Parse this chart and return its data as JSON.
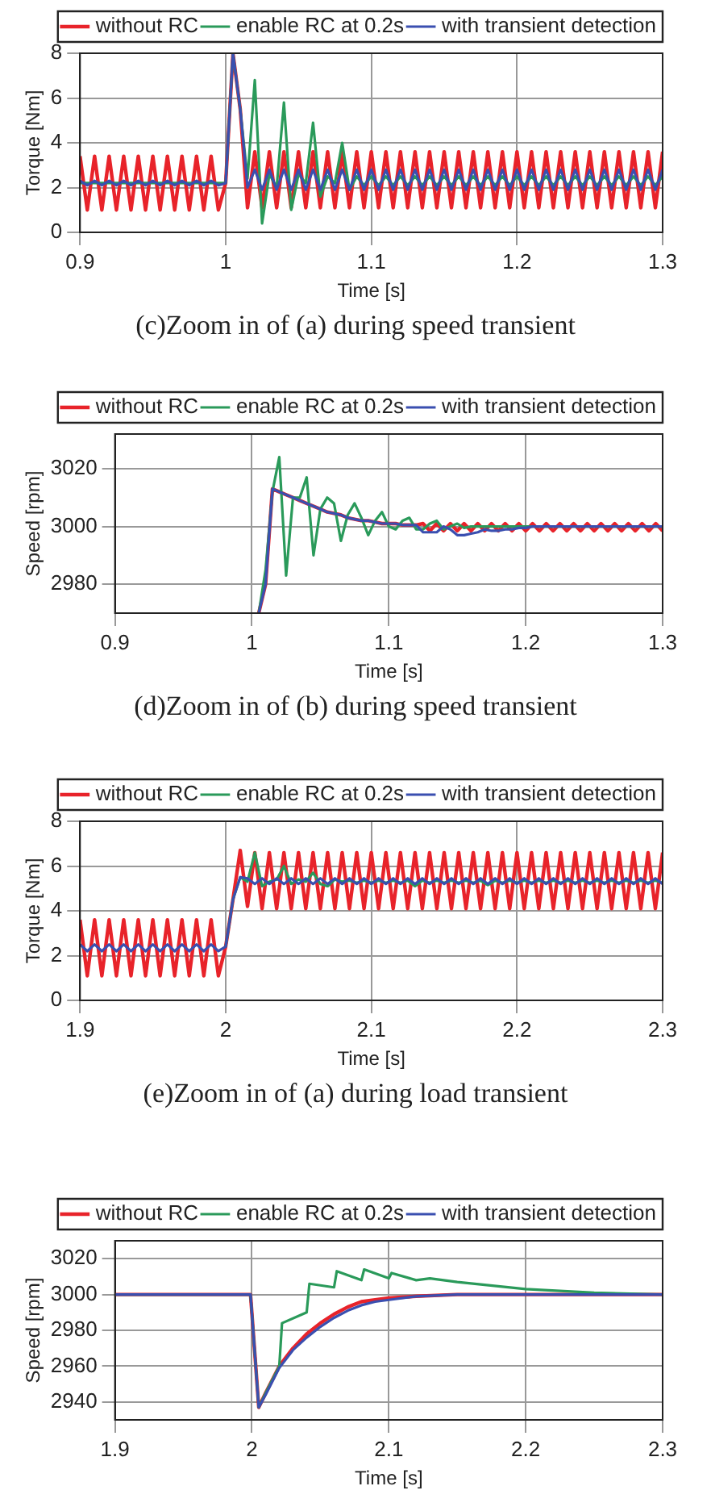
{
  "chart_data": [
    {
      "type": "line",
      "title": "(c)Zoom in of (a) during speed transient",
      "xlabel": "Time [s]",
      "ylabel": "Torque [Nm]",
      "legend": "top",
      "grid": true,
      "marker": "none",
      "line_style": "solid",
      "xlim": [
        0.9,
        1.3
      ],
      "xticks": [
        0.9,
        1,
        1.1,
        1.2,
        1.3
      ],
      "ylim": [
        0,
        8
      ],
      "yticks": [
        0,
        2,
        4,
        6,
        8
      ],
      "x": [
        0.9,
        0.905,
        0.91,
        0.915,
        0.92,
        0.925,
        0.93,
        0.935,
        0.94,
        0.945,
        0.95,
        0.955,
        0.96,
        0.965,
        0.97,
        0.975,
        0.98,
        0.985,
        0.99,
        0.995,
        1.0,
        1.005,
        1.01,
        1.015,
        1.02,
        1.025,
        1.03,
        1.035,
        1.04,
        1.045,
        1.05,
        1.055,
        1.06,
        1.065,
        1.07,
        1.075,
        1.08,
        1.085,
        1.09,
        1.095,
        1.1,
        1.105,
        1.11,
        1.115,
        1.12,
        1.125,
        1.13,
        1.135,
        1.14,
        1.145,
        1.15,
        1.155,
        1.16,
        1.165,
        1.17,
        1.175,
        1.18,
        1.185,
        1.19,
        1.195,
        1.2,
        1.205,
        1.21,
        1.215,
        1.22,
        1.225,
        1.23,
        1.235,
        1.24,
        1.245,
        1.25,
        1.255,
        1.26,
        1.265,
        1.27,
        1.275,
        1.28,
        1.285,
        1.29,
        1.295,
        1.3
      ],
      "series": [
        {
          "name": "without RC",
          "color": "#e8232a",
          "values": [
            3.4,
            1.0,
            3.4,
            1.0,
            3.4,
            1.0,
            3.4,
            1.0,
            3.4,
            1.0,
            3.4,
            1.0,
            3.4,
            1.0,
            3.4,
            1.0,
            3.4,
            1.0,
            3.4,
            1.0,
            2.2,
            8,
            5.5,
            1.1,
            3.6,
            1.1,
            3.6,
            1.1,
            3.6,
            1.1,
            3.6,
            1.1,
            3.6,
            1.1,
            3.6,
            1.1,
            3.6,
            1.1,
            3.6,
            1.1,
            3.6,
            1.1,
            3.6,
            1.1,
            3.6,
            1.1,
            3.6,
            1.1,
            3.6,
            1.1,
            3.6,
            1.1,
            3.6,
            1.1,
            3.6,
            1.1,
            3.6,
            1.1,
            3.6,
            1.1,
            3.6,
            1.1,
            3.6,
            1.1,
            3.6,
            1.1,
            3.6,
            1.1,
            3.6,
            1.1,
            3.6,
            1.1,
            3.6,
            1.1,
            3.6,
            1.1,
            3.6,
            1.1,
            3.6,
            1.1,
            3.6
          ]
        },
        {
          "name": "enable RC at 0.2s",
          "color": "#2a9a5a",
          "values": [
            2.2,
            2.2,
            2.2,
            2.2,
            2.2,
            2.2,
            2.2,
            2.2,
            2.2,
            2.2,
            2.2,
            2.2,
            2.2,
            2.2,
            2.2,
            2.2,
            2.2,
            2.2,
            2.2,
            2.2,
            2.2,
            8,
            5.5,
            2.4,
            6.8,
            0.4,
            2.6,
            2.0,
            5.8,
            1.0,
            2.6,
            2.2,
            4.9,
            1.6,
            2.5,
            2.2,
            4.0,
            1.9,
            2.5,
            2.1,
            2.5,
            2.1,
            2.5,
            2.1,
            2.5,
            2.1,
            2.5,
            2.1,
            2.5,
            2.1,
            2.5,
            2.1,
            2.5,
            2.1,
            2.5,
            2.1,
            2.5,
            2.1,
            2.5,
            2.1,
            2.5,
            2.1,
            2.5,
            2.1,
            2.5,
            2.1,
            2.5,
            2.1,
            2.5,
            2.1,
            2.5,
            2.1,
            2.5,
            2.1,
            2.5,
            2.1,
            2.5,
            2.1,
            2.5,
            2.1,
            2.5
          ]
        },
        {
          "name": "with transient detection",
          "color": "#3a4fb0",
          "values": [
            2.3,
            2.1,
            2.3,
            2.1,
            2.3,
            2.1,
            2.3,
            2.1,
            2.3,
            2.1,
            2.3,
            2.1,
            2.3,
            2.1,
            2.3,
            2.1,
            2.3,
            2.1,
            2.3,
            2.1,
            2.2,
            8,
            5.5,
            2.0,
            2.8,
            1.9,
            2.8,
            1.9,
            2.8,
            1.9,
            2.8,
            1.9,
            2.8,
            1.9,
            2.8,
            1.9,
            2.8,
            1.9,
            2.8,
            1.9,
            2.8,
            1.9,
            2.8,
            1.9,
            2.8,
            1.9,
            2.8,
            1.9,
            2.8,
            1.9,
            2.8,
            1.9,
            2.8,
            1.9,
            2.8,
            1.9,
            2.8,
            1.9,
            2.8,
            1.9,
            2.8,
            1.9,
            2.8,
            1.9,
            2.8,
            1.9,
            2.8,
            1.9,
            2.8,
            1.9,
            2.8,
            1.9,
            2.8,
            1.9,
            2.8,
            1.9,
            2.8,
            1.9,
            2.8,
            1.9,
            2.8
          ]
        }
      ]
    },
    {
      "type": "line",
      "title": "(d)Zoom in of (b) during speed transient",
      "xlabel": "Time [s]",
      "ylabel": "Speed [rpm]",
      "legend": "top",
      "grid": true,
      "marker": "none",
      "line_style": "solid",
      "xlim": [
        0.9,
        1.3
      ],
      "xticks": [
        0.9,
        1,
        1.1,
        1.2,
        1.3
      ],
      "ylim": [
        2970,
        3032
      ],
      "yticks": [
        2980,
        3000,
        3020
      ],
      "x": [
        1.005,
        1.01,
        1.015,
        1.02,
        1.025,
        1.03,
        1.035,
        1.04,
        1.045,
        1.05,
        1.055,
        1.06,
        1.065,
        1.07,
        1.075,
        1.08,
        1.085,
        1.09,
        1.095,
        1.1,
        1.105,
        1.11,
        1.115,
        1.12,
        1.125,
        1.13,
        1.135,
        1.14,
        1.145,
        1.15,
        1.155,
        1.16,
        1.165,
        1.17,
        1.175,
        1.18,
        1.185,
        1.19,
        1.195,
        1.2,
        1.205,
        1.21,
        1.215,
        1.22,
        1.225,
        1.23,
        1.235,
        1.24,
        1.245,
        1.25,
        1.255,
        1.26,
        1.265,
        1.27,
        1.275,
        1.28,
        1.285,
        1.29,
        1.295,
        1.3
      ],
      "series": [
        {
          "name": "without RC",
          "color": "#e8232a",
          "values": [
            2970,
            2980,
            3013,
            3012,
            3011,
            3010,
            3009,
            3008,
            3007,
            3006,
            3005,
            3004.5,
            3004,
            3003,
            3002.5,
            3002,
            3002,
            3001.5,
            3001,
            3001,
            3001,
            3000.5,
            3000.5,
            3000.5,
            3001,
            2998.5,
            3001,
            2998.5,
            3001,
            2998.5,
            3001,
            2998.5,
            3001,
            2998.5,
            3001,
            2998.5,
            3001,
            2998.5,
            3001,
            2998.5,
            3001,
            2998.5,
            3001,
            2998.5,
            3001,
            2998.5,
            3001,
            2998.5,
            3001,
            2998.5,
            3001,
            2998.5,
            3001,
            2998.5,
            3001,
            2998.5,
            3001,
            2998.5,
            3001,
            2998.5
          ]
        },
        {
          "name": "enable RC at 0.2s",
          "color": "#2a9a5a",
          "values": [
            2970,
            2985,
            3012,
            3024,
            2983,
            3010,
            3010,
            3017,
            2990,
            3006,
            3010,
            3008,
            2995,
            3004,
            3008,
            3003,
            2997,
            3002,
            3005,
            3000,
            2999,
            3002,
            3003,
            2999,
            2999,
            3001,
            3002,
            2999,
            3000,
            3001,
            2999.5,
            3000,
            3000,
            3000,
            3000,
            3000,
            3000,
            3000,
            3000,
            3000,
            3000,
            3000,
            3000,
            3000,
            3000,
            3000,
            3000,
            3000,
            3000,
            3000,
            3000,
            3000,
            3000,
            3000,
            3000,
            3000,
            3000,
            3000,
            3000,
            3000
          ]
        },
        {
          "name": "with transient detection",
          "color": "#3a4fb0",
          "values": [
            2970,
            2980,
            3013,
            3012,
            3011,
            3010,
            3009,
            3008,
            3007,
            3006,
            3005,
            3004.5,
            3004,
            3003,
            3002.5,
            3002,
            3002,
            3001.5,
            3001,
            3001,
            3001,
            3000.5,
            3000.5,
            3000.5,
            2998,
            2998,
            2998,
            3000,
            2999,
            2997,
            2997,
            2997.5,
            2998,
            2999,
            2998.5,
            2998.5,
            2999,
            2999,
            2999.5,
            2999.5,
            3000,
            3000,
            3000,
            3000,
            3000,
            3000,
            3000,
            3000,
            3000,
            3000,
            3000,
            3000,
            3000,
            3000,
            3000,
            3000,
            3000,
            3000,
            3000,
            3000
          ]
        }
      ]
    },
    {
      "type": "line",
      "title": "(e)Zoom in of (a) during load transient",
      "xlabel": "Time [s]",
      "ylabel": "Torque [Nm]",
      "legend": "top",
      "grid": true,
      "marker": "none",
      "line_style": "solid",
      "xlim": [
        1.9,
        2.3
      ],
      "xticks": [
        1.9,
        2,
        2.1,
        2.2,
        2.3
      ],
      "ylim": [
        0,
        8
      ],
      "yticks": [
        0,
        2,
        4,
        6,
        8
      ],
      "x": [
        1.9,
        1.905,
        1.91,
        1.915,
        1.92,
        1.925,
        1.93,
        1.935,
        1.94,
        1.945,
        1.95,
        1.955,
        1.96,
        1.965,
        1.97,
        1.975,
        1.98,
        1.985,
        1.99,
        1.995,
        2.0,
        2.005,
        2.01,
        2.015,
        2.02,
        2.025,
        2.03,
        2.035,
        2.04,
        2.045,
        2.05,
        2.055,
        2.06,
        2.065,
        2.07,
        2.075,
        2.08,
        2.085,
        2.09,
        2.095,
        2.1,
        2.105,
        2.11,
        2.115,
        2.12,
        2.125,
        2.13,
        2.135,
        2.14,
        2.145,
        2.15,
        2.155,
        2.16,
        2.165,
        2.17,
        2.175,
        2.18,
        2.185,
        2.19,
        2.195,
        2.2,
        2.205,
        2.21,
        2.215,
        2.22,
        2.225,
        2.23,
        2.235,
        2.24,
        2.245,
        2.25,
        2.255,
        2.26,
        2.265,
        2.27,
        2.275,
        2.28,
        2.285,
        2.29,
        2.295,
        2.3
      ],
      "series": [
        {
          "name": "without RC",
          "color": "#e8232a",
          "values": [
            3.6,
            1.1,
            3.6,
            1.1,
            3.6,
            1.1,
            3.6,
            1.1,
            3.6,
            1.1,
            3.6,
            1.1,
            3.6,
            1.1,
            3.6,
            1.1,
            3.6,
            1.1,
            3.6,
            1.1,
            2.4,
            4.5,
            6.7,
            4.2,
            6.6,
            4.1,
            6.6,
            4.1,
            6.6,
            4.1,
            6.6,
            4.1,
            6.6,
            4.1,
            6.6,
            4.1,
            6.6,
            4.1,
            6.6,
            4.1,
            6.6,
            4.1,
            6.6,
            4.1,
            6.6,
            4.1,
            6.6,
            4.1,
            6.6,
            4.1,
            6.6,
            4.1,
            6.6,
            4.1,
            6.6,
            4.1,
            6.6,
            4.1,
            6.6,
            4.1,
            6.6,
            4.1,
            6.6,
            4.1,
            6.6,
            4.1,
            6.6,
            4.1,
            6.6,
            4.1,
            6.6,
            4.1,
            6.6,
            4.1,
            6.6,
            4.1,
            6.6,
            4.1,
            6.6,
            4.1,
            6.6
          ]
        },
        {
          "name": "enable RC at 0.2s",
          "color": "#2a9a5a",
          "values": [
            null,
            null,
            null,
            null,
            null,
            null,
            null,
            null,
            null,
            null,
            null,
            null,
            null,
            null,
            null,
            null,
            null,
            null,
            null,
            null,
            2.4,
            4.5,
            5.5,
            5.3,
            6.6,
            5.1,
            5.3,
            5.4,
            6.0,
            5.2,
            5.4,
            5.3,
            5.7,
            5.2,
            5.1,
            5.4,
            5.3,
            5.35,
            5.25,
            5.35,
            5.25,
            5.35,
            5.25,
            5.35,
            5.25,
            5.35,
            5.1,
            5.35,
            5.25,
            5.35,
            5.25,
            5.35,
            5.25,
            5.35,
            5.25,
            5.35,
            5.15,
            5.35,
            5.25,
            5.35,
            5.25,
            5.35,
            5.25,
            5.35,
            5.25,
            5.35,
            5.25,
            5.35,
            5.25,
            5.35,
            5.25,
            5.35,
            5.25,
            5.35,
            5.25,
            5.35,
            5.25,
            5.35,
            5.25,
            5.35,
            5.25
          ]
        },
        {
          "name": "with transient detection",
          "color": "#3a4fb0",
          "values": [
            2.5,
            2.2,
            2.5,
            2.2,
            2.5,
            2.2,
            2.5,
            2.2,
            2.5,
            2.2,
            2.5,
            2.2,
            2.5,
            2.2,
            2.5,
            2.2,
            2.5,
            2.2,
            2.5,
            2.2,
            2.4,
            4.5,
            5.5,
            5.45,
            5.2,
            5.45,
            5.2,
            5.45,
            5.2,
            5.45,
            5.2,
            5.45,
            5.2,
            5.45,
            5.2,
            5.45,
            5.2,
            5.45,
            5.2,
            5.45,
            5.2,
            5.45,
            5.2,
            5.45,
            5.2,
            5.45,
            5.2,
            5.45,
            5.2,
            5.45,
            5.2,
            5.45,
            5.2,
            5.45,
            5.2,
            5.45,
            5.2,
            5.45,
            5.2,
            5.45,
            5.2,
            5.45,
            5.2,
            5.45,
            5.2,
            5.45,
            5.2,
            5.45,
            5.2,
            5.45,
            5.2,
            5.45,
            5.2,
            5.45,
            5.2,
            5.45,
            5.2,
            5.45,
            5.2,
            5.45,
            5.2
          ]
        }
      ]
    },
    {
      "type": "line",
      "xlabel": "Time [s]",
      "ylabel": "Speed [rpm]",
      "legend": "top",
      "grid": true,
      "marker": "none",
      "line_style": "solid",
      "xlim": [
        1.9,
        2.3
      ],
      "xticks": [
        1.9,
        2,
        2.1,
        2.2,
        2.3
      ],
      "ylim": [
        2930,
        3030
      ],
      "yticks": [
        2940,
        2960,
        2980,
        3000,
        3020
      ],
      "x": [
        1.9,
        1.95,
        1.999,
        2.005,
        2.01,
        2.02,
        2.03,
        2.04,
        2.05,
        2.06,
        2.07,
        2.08,
        2.09,
        2.1,
        2.12,
        2.15,
        2.2,
        2.25,
        2.3
      ],
      "series": [
        {
          "name": "without RC",
          "color": "#e8232a",
          "values": [
            3000,
            3000,
            3000,
            2937,
            2945,
            2960,
            2970,
            2978,
            2984,
            2989,
            2993,
            2996,
            2997,
            2998,
            2999,
            3000,
            3000,
            3000,
            3000
          ]
        },
        {
          "name": "enable RC at 0.2s",
          "color": "#2a9a5a",
          "x": [
            1.9,
            1.999,
            2.005,
            2.01,
            2.02,
            2.022,
            2.04,
            2.042,
            2.06,
            2.062,
            2.08,
            2.082,
            2.1,
            2.102,
            2.12,
            2.13,
            2.15,
            2.2,
            2.25,
            2.3
          ],
          "values": [
            3000,
            3000,
            2937,
            2945,
            2960,
            2984,
            2990,
            3006,
            3004,
            3013,
            3008,
            3014,
            3009,
            3012,
            3008,
            3009,
            3007,
            3003,
            3001,
            3000
          ]
        },
        {
          "name": "with transient detection",
          "color": "#3a4fb0",
          "values": [
            3000,
            3000,
            3000,
            2937,
            2944,
            2959,
            2969,
            2976,
            2982,
            2987,
            2991,
            2994,
            2996,
            2997,
            2999,
            3000,
            3000,
            3000,
            3000
          ]
        }
      ]
    }
  ]
}
